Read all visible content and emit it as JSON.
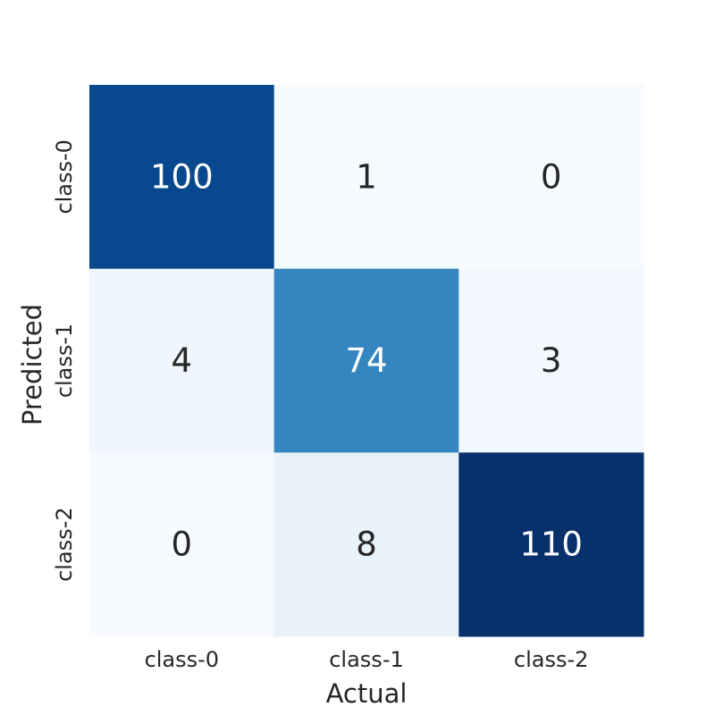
{
  "chart_data": {
    "type": "heatmap",
    "title": "",
    "xlabel": "Actual",
    "ylabel": "Predicted",
    "x_categories": [
      "class-0",
      "class-1",
      "class-2"
    ],
    "y_categories": [
      "class-0",
      "class-1",
      "class-2"
    ],
    "values": [
      [
        100,
        1,
        0
      ],
      [
        4,
        74,
        3
      ],
      [
        0,
        8,
        110
      ]
    ],
    "value_range": [
      0,
      110
    ],
    "colormap": "Blues",
    "colorbar": false,
    "grid": false
  }
}
